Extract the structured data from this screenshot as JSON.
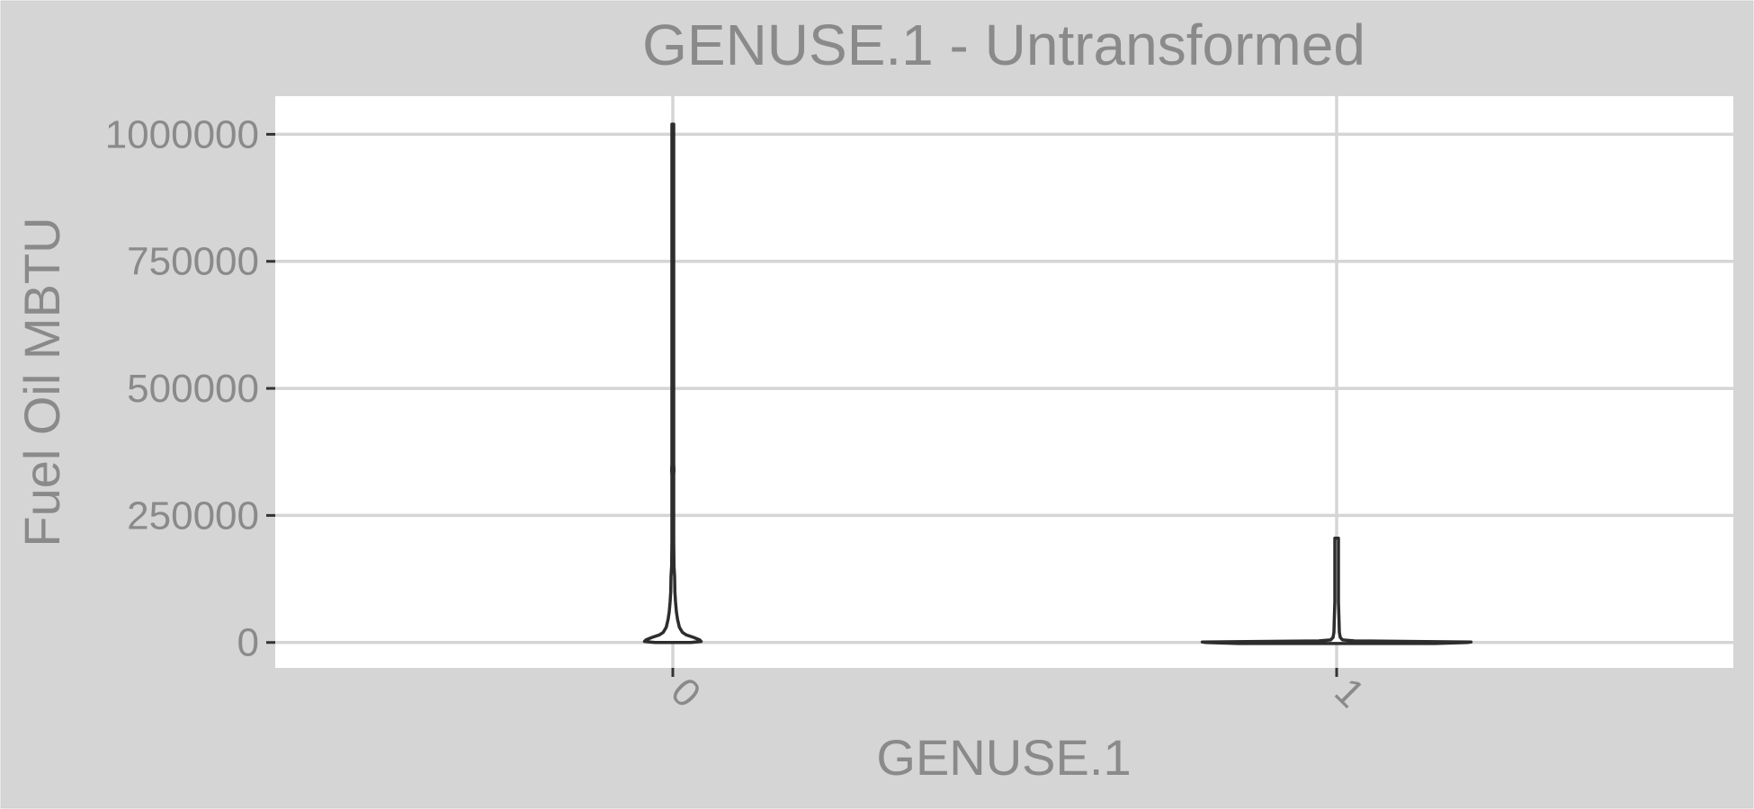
{
  "chart_data": {
    "type": "violin",
    "title": "GENUSE.1 - Untransformed",
    "xlabel": "GENUSE.1",
    "ylabel": "Fuel Oil MBTU",
    "categories": [
      "0",
      "1"
    ],
    "y_ticks": [
      0,
      250000,
      500000,
      750000,
      1000000
    ],
    "y_tick_labels": [
      "0",
      "250000",
      "500000",
      "750000",
      "1000000"
    ],
    "ylim": [
      -50000,
      1075000
    ],
    "grid": true,
    "legend": "none",
    "series": [
      {
        "category": "0",
        "max": 1020000,
        "profile": [
          [
            0,
            0.06
          ],
          [
            2000,
            0.095
          ],
          [
            5000,
            0.09
          ],
          [
            10000,
            0.07
          ],
          [
            15000,
            0.045
          ],
          [
            20000,
            0.032
          ],
          [
            30000,
            0.022
          ],
          [
            45000,
            0.016
          ],
          [
            60000,
            0.012
          ],
          [
            80000,
            0.009
          ],
          [
            100000,
            0.007
          ],
          [
            130000,
            0.006
          ],
          [
            150000,
            0.004
          ],
          [
            200000,
            0.003
          ],
          [
            330000,
            0.003
          ],
          [
            340000,
            0.004
          ],
          [
            350000,
            0.003
          ],
          [
            1020000,
            0.003
          ]
        ]
      },
      {
        "category": "1",
        "max": 205000,
        "profile": [
          [
            -2000,
            0.33
          ],
          [
            0,
            0.44
          ],
          [
            1000,
            0.45
          ],
          [
            2000,
            0.26
          ],
          [
            3000,
            0.06
          ],
          [
            5000,
            0.02
          ],
          [
            10000,
            0.012
          ],
          [
            20000,
            0.009
          ],
          [
            40000,
            0.008
          ],
          [
            80000,
            0.006
          ],
          [
            120000,
            0.006
          ],
          [
            160000,
            0.006
          ],
          [
            205000,
            0.006
          ]
        ]
      }
    ],
    "colors": {
      "background": "#d5d5d5",
      "panel": "#ffffff",
      "grid": "#d5d5d5",
      "violin_stroke": "#2d2d2d",
      "violin_fill": "#ffffff",
      "text": "#8a8a8a",
      "ticks": "#333333"
    }
  }
}
